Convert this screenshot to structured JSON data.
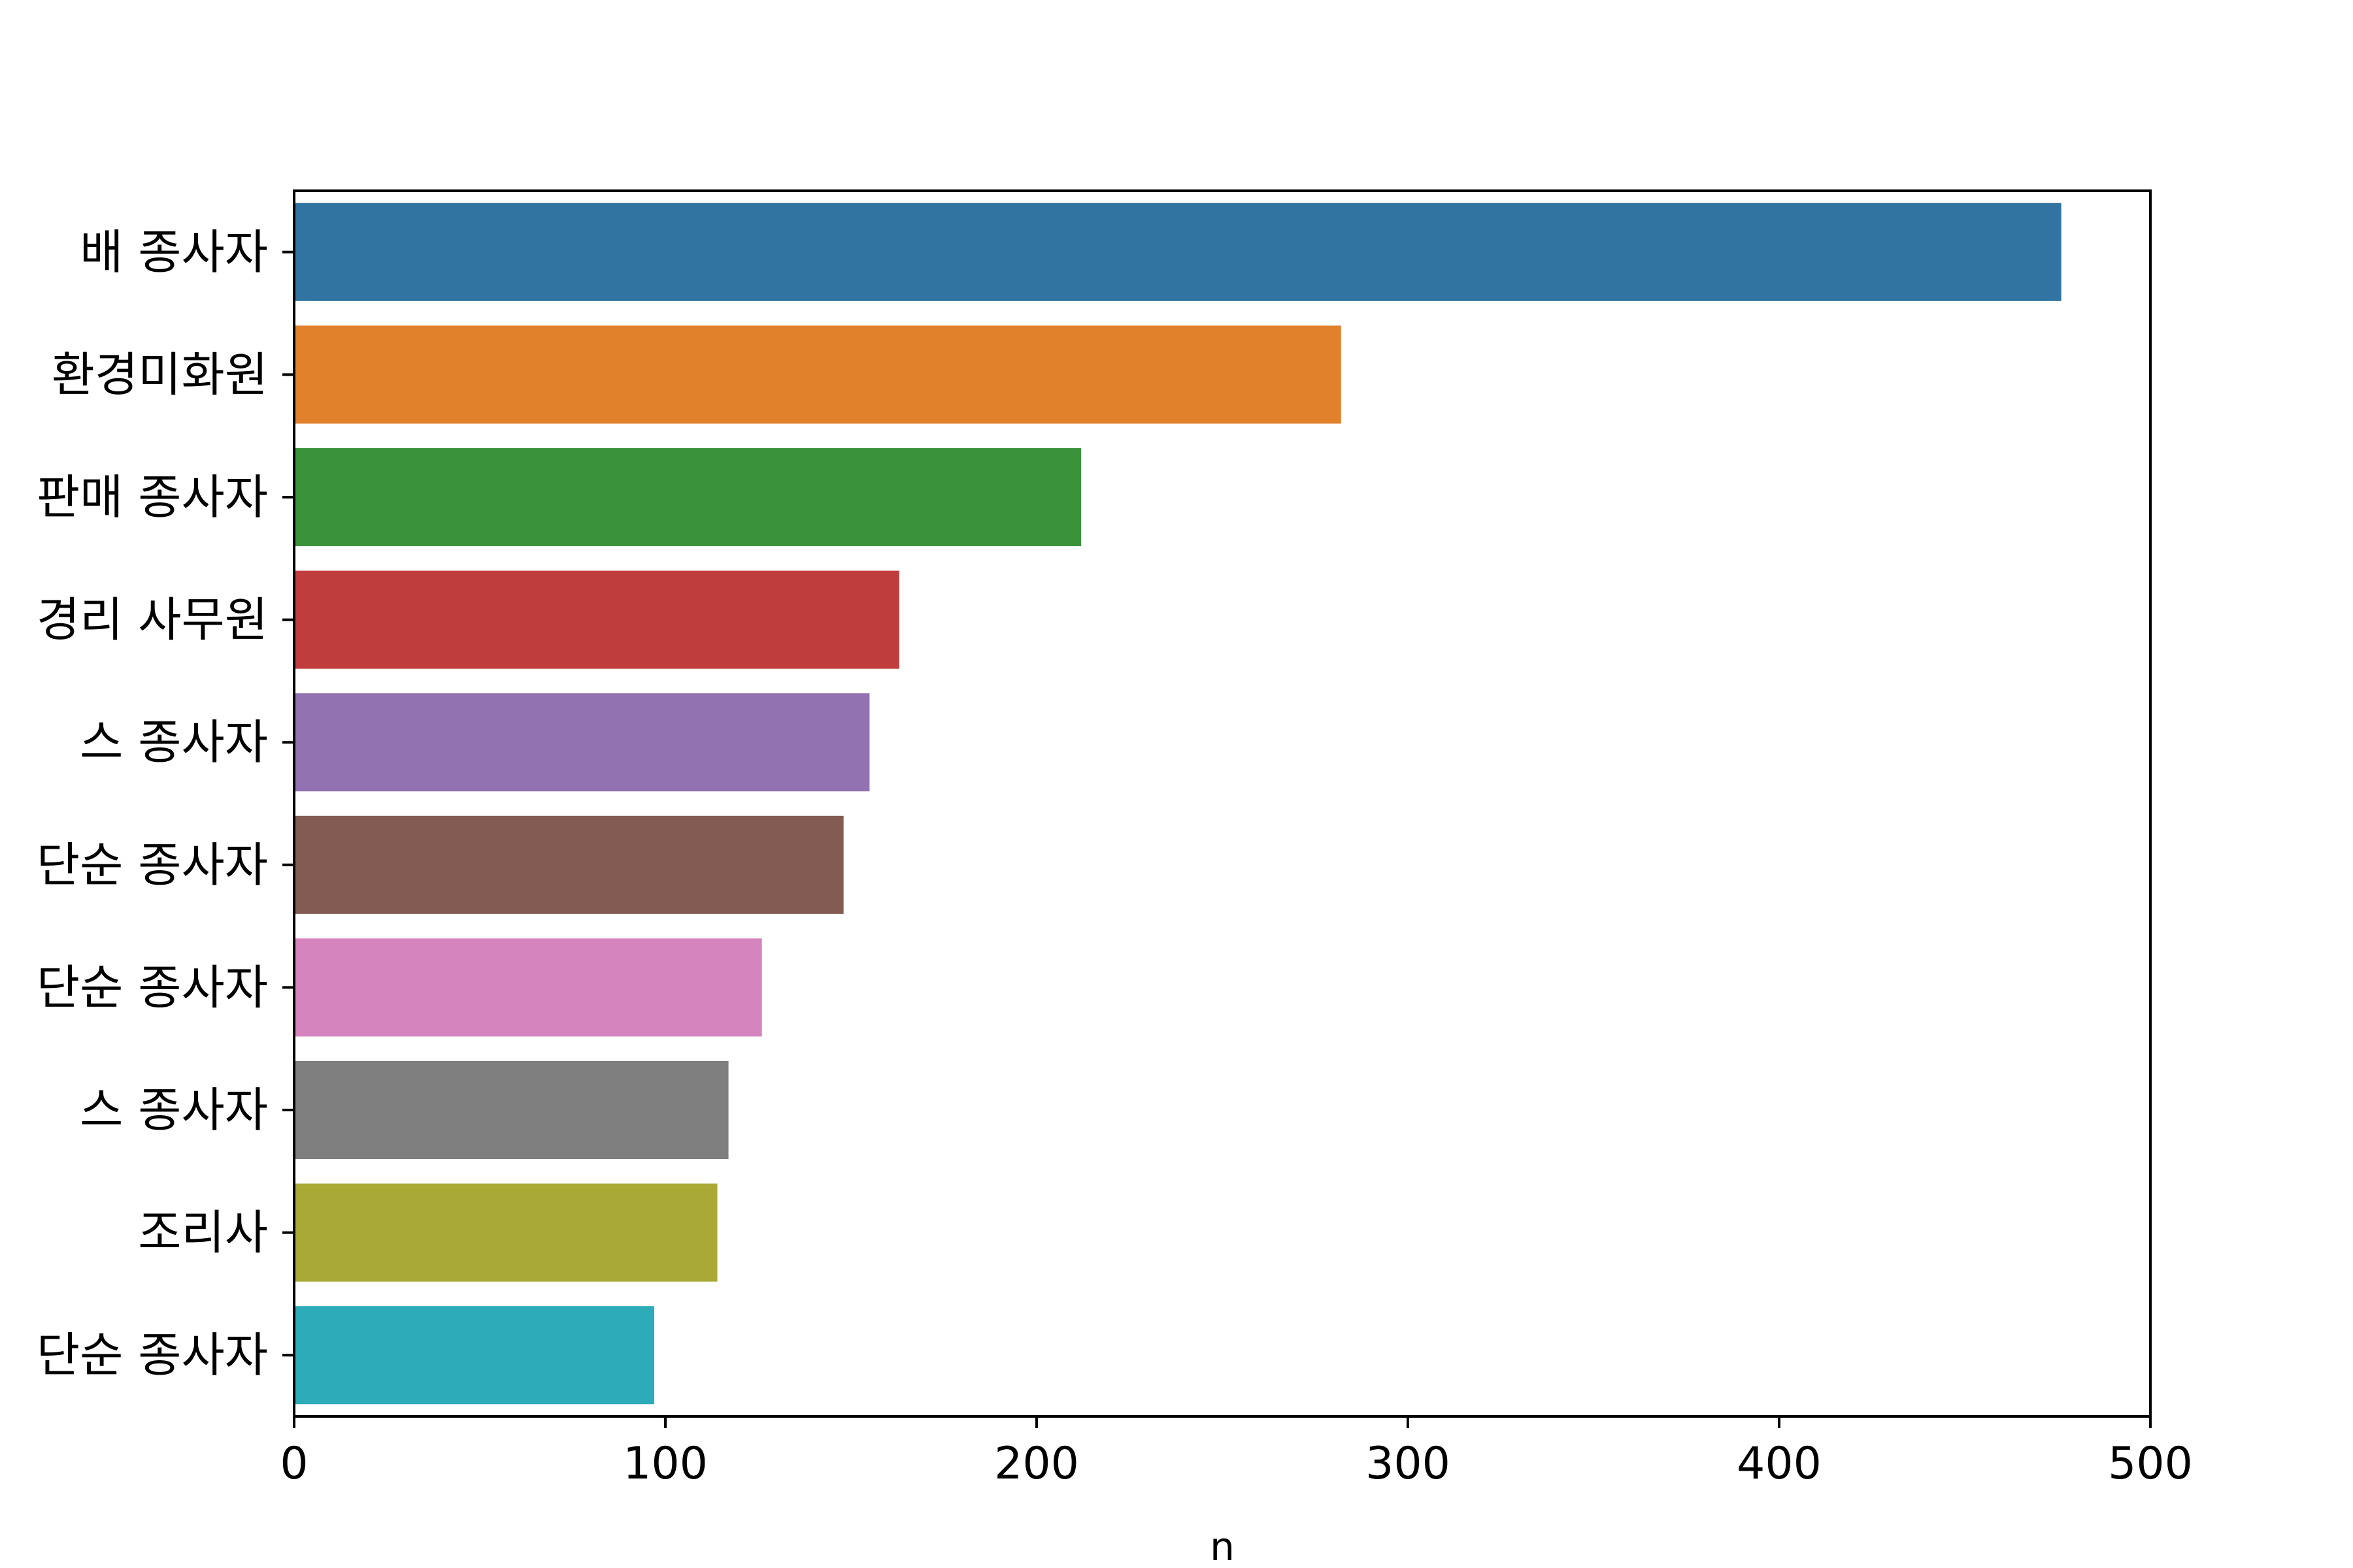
{
  "chart_data": {
    "type": "bar",
    "orientation": "horizontal",
    "title": "",
    "xlabel": "n",
    "ylabel": "",
    "xlim": [
      0,
      500
    ],
    "xticks": [
      0,
      100,
      200,
      300,
      400,
      500
    ],
    "grid": false,
    "legend": "none",
    "categories": [
      "배 종사자",
      "환경미화원",
      "판매 종사자",
      "경리 사무원",
      "스 종사자",
      "단순 종사자",
      "단순 종사자",
      "스 종사자",
      "조리사",
      "단순 종사자"
    ],
    "values": [
      476,
      282,
      212,
      163,
      155,
      148,
      126,
      117,
      114,
      97
    ],
    "colors": [
      "#3274a1",
      "#e1812c",
      "#3a923a",
      "#c03d3e",
      "#9372b2",
      "#845b53",
      "#d684bd",
      "#7f7f7f",
      "#a9aa35",
      "#2eabb8"
    ]
  }
}
